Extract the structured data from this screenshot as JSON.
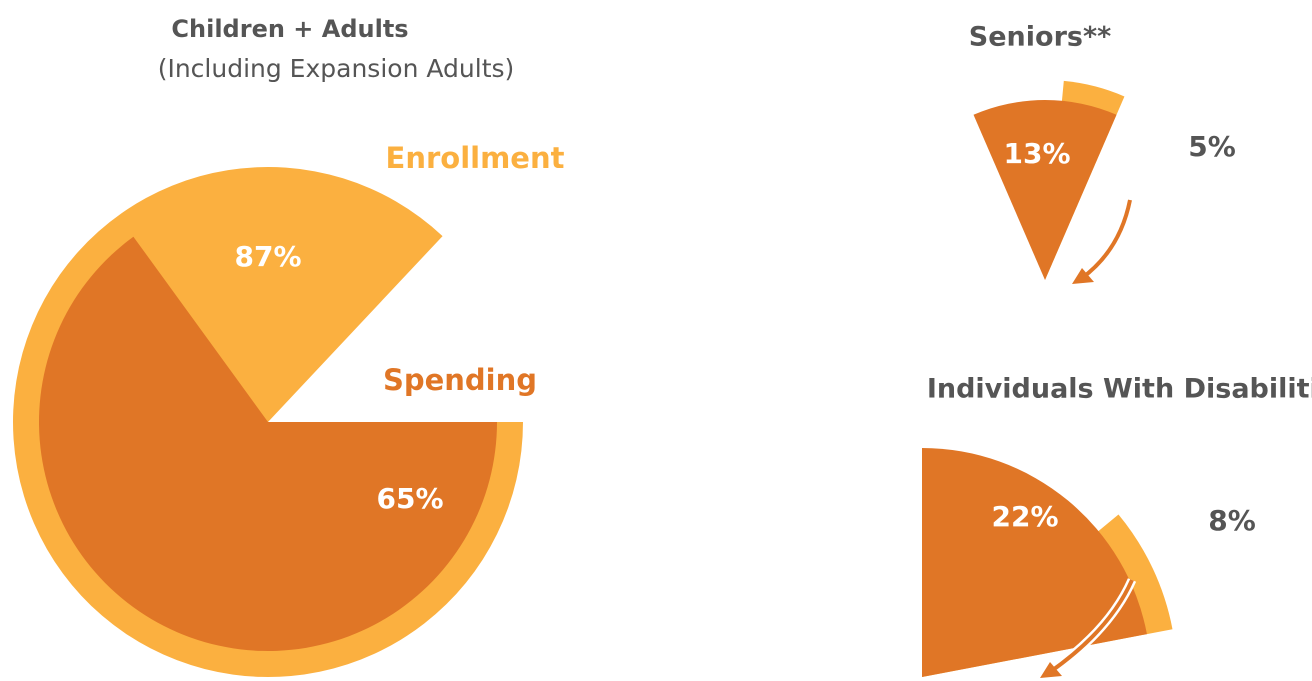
{
  "charts": [
    {
      "type": "pie",
      "title": "Children + Adults",
      "subtitle": "(Including Expansion Adults)",
      "series": [
        {
          "name": "Enrollment",
          "color": "#FBB040",
          "values": [
            87
          ],
          "value_labels": [
            "87%"
          ]
        },
        {
          "name": "Spending",
          "color": "#E07626",
          "values": [
            65
          ],
          "value_labels": [
            "65%"
          ]
        }
      ]
    },
    {
      "type": "pie",
      "title": "Seniors**",
      "series": [
        {
          "color": "#FBB040",
          "values": [
            5
          ],
          "value_labels": [
            "5%"
          ]
        },
        {
          "color": "#E07626",
          "values": [
            13
          ],
          "value_labels": [
            "13%"
          ]
        }
      ]
    },
    {
      "type": "pie",
      "title": "Individuals With Disabilities",
      "series": [
        {
          "color": "#FBB040",
          "values": [
            8
          ],
          "value_labels": [
            "8%"
          ]
        },
        {
          "color": "#E07626",
          "values": [
            22
          ],
          "value_labels": [
            "22%"
          ]
        }
      ]
    }
  ]
}
